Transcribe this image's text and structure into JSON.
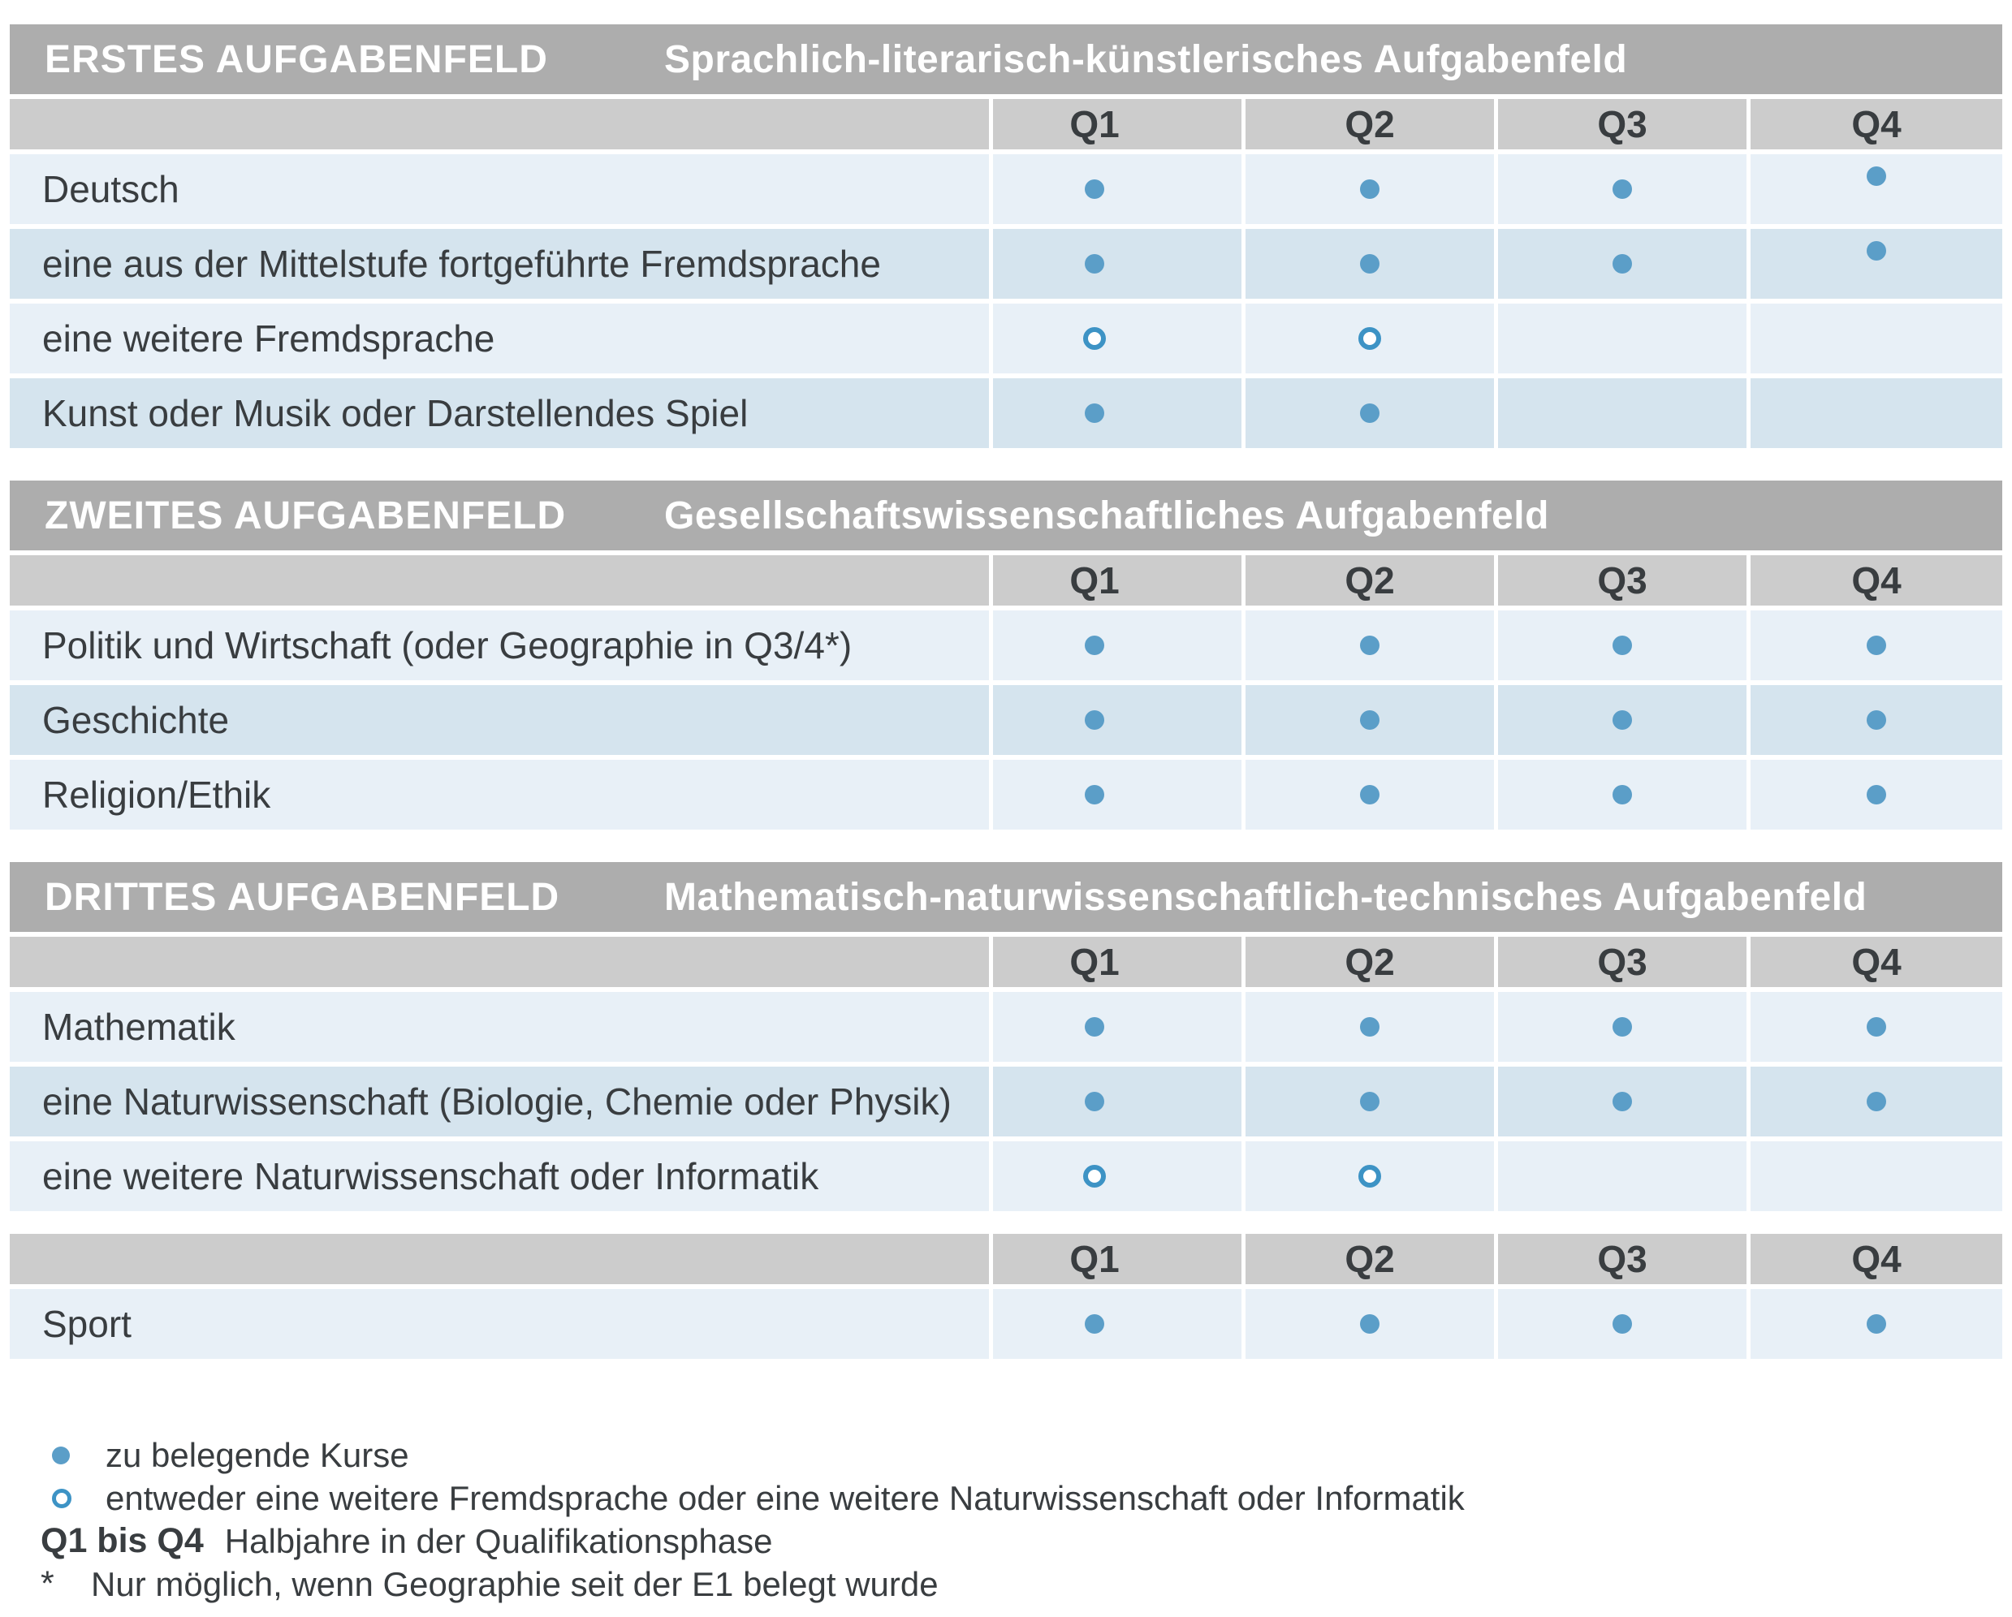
{
  "columns": [
    "Q1",
    "Q2",
    "Q3",
    "Q4"
  ],
  "sections": [
    {
      "title": "ERSTES AUFGABENFELD",
      "subtitle": "Sprachlich-literarisch-künstlerisches Aufgabenfeld",
      "rows": [
        {
          "label": "Deutsch",
          "cells": [
            "filled",
            "filled",
            "filled",
            "filled"
          ]
        },
        {
          "label": "eine aus der Mittelstufe fortgeführte Fremdsprache",
          "cells": [
            "filled",
            "filled",
            "filled",
            "filled"
          ]
        },
        {
          "label": "eine weitere Fremdsprache",
          "cells": [
            "open",
            "open",
            "none",
            "none"
          ]
        },
        {
          "label": "Kunst oder Musik oder Darstellendes Spiel",
          "cells": [
            "filled",
            "filled",
            "none",
            "none"
          ]
        }
      ]
    },
    {
      "title": "ZWEITES AUFGABENFELD",
      "subtitle": "Gesellschaftswissenschaftliches Aufgabenfeld",
      "rows": [
        {
          "label": "Politik und Wirtschaft  (oder Geographie in Q3/4*)",
          "cells": [
            "filled",
            "filled",
            "filled",
            "filled"
          ]
        },
        {
          "label": "Geschichte",
          "cells": [
            "filled",
            "filled",
            "filled",
            "filled"
          ]
        },
        {
          "label": "Religion/Ethik",
          "cells": [
            "filled",
            "filled",
            "filled",
            "filled"
          ]
        }
      ]
    },
    {
      "title": "DRITTES AUFGABENFELD",
      "subtitle": "Mathematisch-naturwissenschaftlich-technisches Aufgabenfeld",
      "rows": [
        {
          "label": "Mathematik",
          "cells": [
            "filled",
            "filled",
            "filled",
            "filled"
          ]
        },
        {
          "label": "eine Naturwissenschaft (Biologie, Chemie oder Physik)",
          "cells": [
            "filled",
            "filled",
            "filled",
            "filled"
          ]
        },
        {
          "label": "eine weitere Naturwissenschaft oder Informatik",
          "cells": [
            "open",
            "open",
            "none",
            "none"
          ]
        }
      ]
    },
    {
      "rows": [
        {
          "label": "Sport",
          "cells": [
            "filled",
            "filled",
            "filled",
            "filled"
          ]
        }
      ]
    }
  ],
  "legend": {
    "items": [
      {
        "marker": "filled-dot",
        "text": "zu belegende Kurse"
      },
      {
        "marker": "open-dot",
        "text": "entweder eine weitere Fremdsprache oder eine weitere Naturwissenschaft oder Informatik"
      },
      {
        "key": "Q1 bis Q4",
        "text": "Halbjahre in der Qualifikationsphase"
      },
      {
        "key": "*",
        "text": "Nur möglich, wenn Geographie seit der E1 belegt wurde"
      }
    ]
  },
  "colors": {
    "section_band_bg": "#adadad",
    "column_header_bg": "#cccccc",
    "row_light_bg": "#e8f0f7",
    "row_dark_bg": "#d5e4ee",
    "dot_filled": "#5b9ec8",
    "dot_open_ring": "#3d93c5",
    "text_dark": "#393d40",
    "band_text": "#ffffff"
  }
}
